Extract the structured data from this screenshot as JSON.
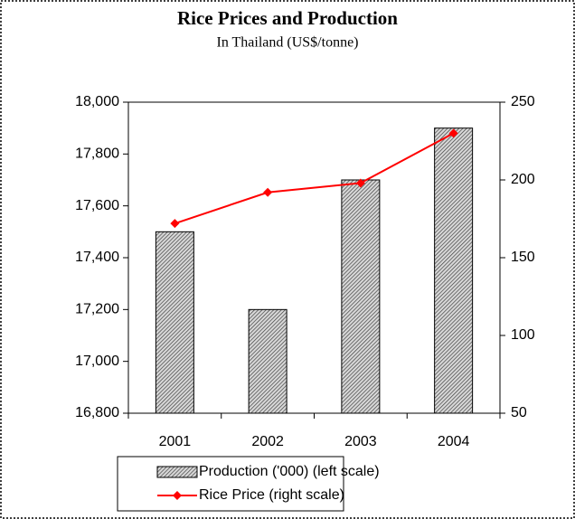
{
  "chart_data": {
    "type": "bar",
    "title": "Rice Prices and Production",
    "subtitle": "In Thailand (US$/tonne)",
    "categories": [
      "2001",
      "2002",
      "2003",
      "2004"
    ],
    "series": [
      {
        "name": "Production ('000) (left scale)",
        "type": "bar",
        "axis": "y",
        "color": "#888888",
        "values": [
          17500,
          17200,
          17700,
          17900
        ]
      },
      {
        "name": "Rice Price (right scale)",
        "type": "line",
        "axis": "y2",
        "color": "#ff0000",
        "values": [
          172,
          192,
          198,
          230
        ]
      }
    ],
    "ylim": [
      16800,
      18000
    ],
    "yticks": [
      {
        "value": 16800,
        "label": "16,800"
      },
      {
        "value": 17000,
        "label": "17,000"
      },
      {
        "value": 17200,
        "label": "17,200"
      },
      {
        "value": 17400,
        "label": "17,400"
      },
      {
        "value": 17600,
        "label": "17,600"
      },
      {
        "value": 17800,
        "label": "17,800"
      },
      {
        "value": 18000,
        "label": "18,000"
      }
    ],
    "y2lim": [
      50,
      250
    ],
    "y2ticks": [
      50,
      100,
      150,
      200,
      250
    ],
    "legend": "bottom"
  }
}
